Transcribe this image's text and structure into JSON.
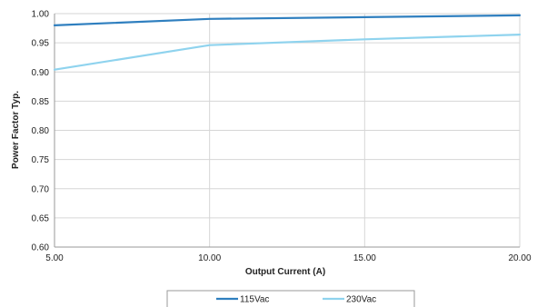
{
  "chart_data": {
    "type": "line",
    "title": "",
    "xlabel": "Output Current (A)",
    "ylabel": "Power Factor Typ.",
    "xlim": [
      5.0,
      20.0
    ],
    "ylim": [
      0.6,
      1.0
    ],
    "x_ticks": [
      "5.00",
      "10.00",
      "15.00",
      "20.00"
    ],
    "y_ticks": [
      "0.60",
      "0.65",
      "0.70",
      "0.75",
      "0.80",
      "0.85",
      "0.90",
      "0.95",
      "1.00"
    ],
    "grid": true,
    "legend_position": "bottom",
    "series": [
      {
        "name": "115Vac",
        "color": "#2f7fbf",
        "x": [
          5.0,
          10.0,
          15.0,
          20.0
        ],
        "y": [
          0.98,
          0.991,
          0.994,
          0.997
        ]
      },
      {
        "name": "230Vac",
        "color": "#8fd3ee",
        "x": [
          5.0,
          10.0,
          15.0,
          20.0
        ],
        "y": [
          0.904,
          0.946,
          0.956,
          0.964
        ]
      }
    ]
  }
}
